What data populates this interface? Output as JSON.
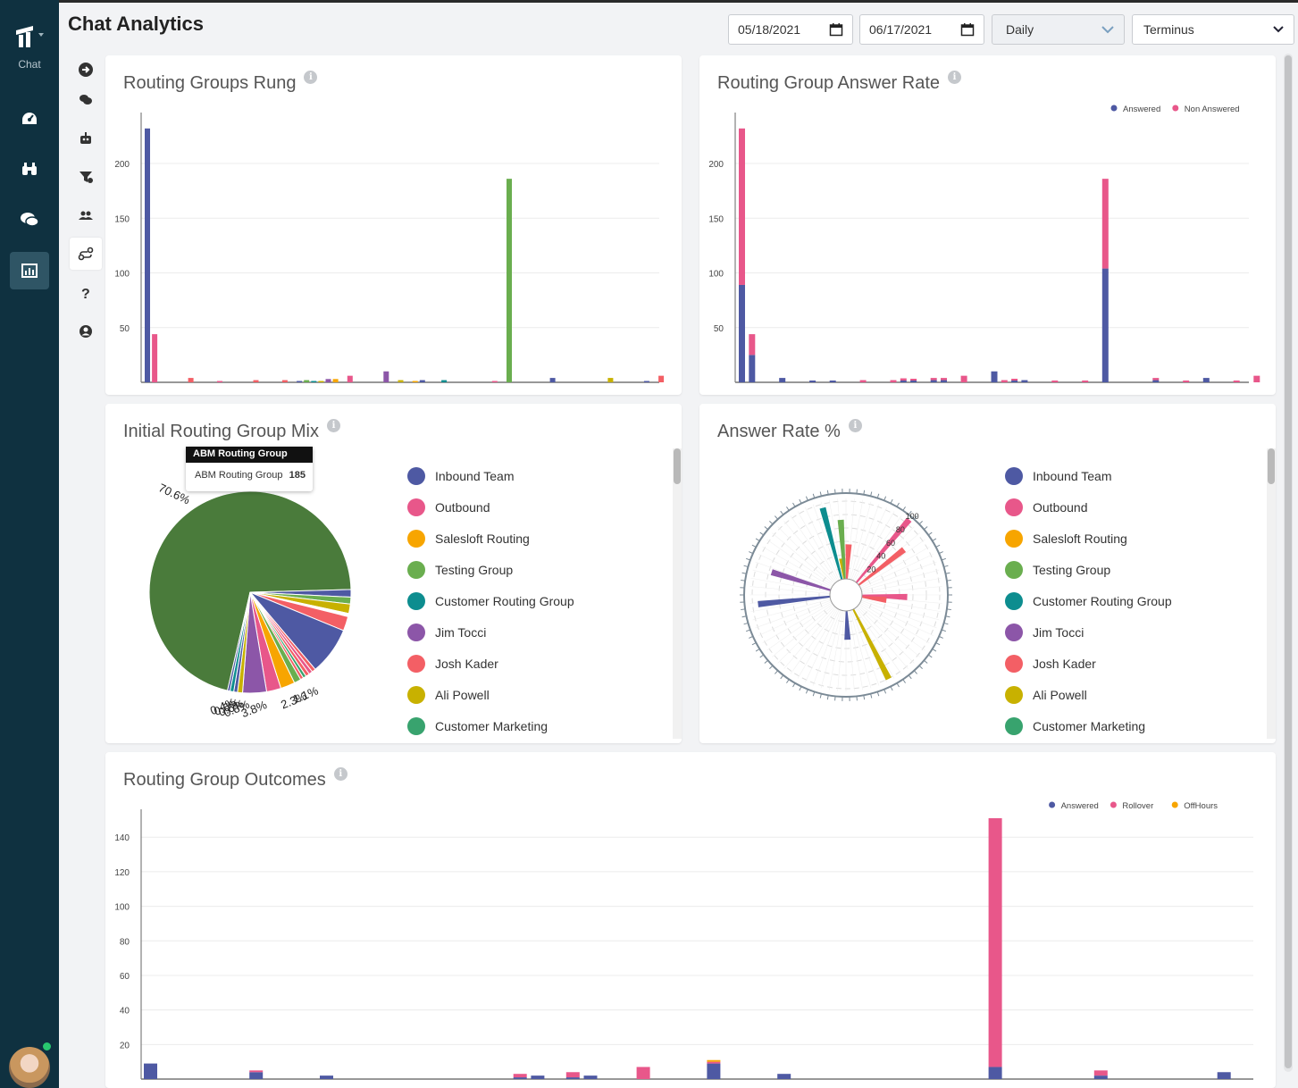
{
  "app": {
    "nav_label": "Chat",
    "page_title": "Chat Analytics"
  },
  "filters": {
    "start_date": "05/18/2021",
    "end_date": "06/17/2021",
    "interval": "Daily",
    "org": "Terminus"
  },
  "icons": {
    "nav": [
      "dashboard-icon",
      "binoculars-icon",
      "chat-bubbles-icon",
      "analytics-icon"
    ],
    "subnav": [
      "arrow-right-circle-icon",
      "chat-icon",
      "bot-icon",
      "filter-icon",
      "users-icon",
      "routing-icon",
      "help-icon",
      "user-circle-icon"
    ]
  },
  "colors": {
    "Inbound Team": "#4e59a3",
    "Outbound": "#e8578a",
    "Salesloft Routing": "#f7a500",
    "Testing Group": "#6aae4f",
    "Customer Routing Group": "#0d8d8f",
    "Jim Tocci": "#8c56a8",
    "Josh Kader": "#f35f65",
    "Ali Powell": "#c8b100",
    "Customer Marketing": "#38a36e",
    "ABM Routing Group": "#4a7b3b"
  },
  "legend_groups": [
    "Inbound Team",
    "Outbound",
    "Salesloft Routing",
    "Testing Group",
    "Customer Routing Group",
    "Jim Tocci",
    "Josh Kader",
    "Ali Powell",
    "Customer Marketing"
  ],
  "cards": {
    "rung": {
      "title": "Routing Groups Rung"
    },
    "answer_rate": {
      "title": "Routing Group Answer Rate"
    },
    "mix": {
      "title": "Initial Routing Group Mix"
    },
    "pct": {
      "title": "Answer Rate %"
    },
    "outcomes": {
      "title": "Routing Group Outcomes"
    }
  },
  "tooltip": {
    "header": "ABM Routing Group",
    "label": "ABM Routing Group",
    "value": "185"
  },
  "chart_data": [
    {
      "id": "rung",
      "type": "bar",
      "ylim": [
        0,
        240
      ],
      "yticks": [
        50,
        100,
        150,
        200
      ],
      "bars": [
        {
          "x": 0,
          "v": 232,
          "c": "#4e59a3"
        },
        {
          "x": 1,
          "v": 44,
          "c": "#e8578a"
        },
        {
          "x": 6,
          "v": 4,
          "c": "#f35f65"
        },
        {
          "x": 10,
          "v": 1,
          "c": "#e8578a"
        },
        {
          "x": 15,
          "v": 2,
          "c": "#f35f65"
        },
        {
          "x": 19,
          "v": 2,
          "c": "#f35f65"
        },
        {
          "x": 21,
          "v": 1,
          "c": "#4e59a3"
        },
        {
          "x": 22,
          "v": 2,
          "c": "#6aae4f"
        },
        {
          "x": 23,
          "v": 1,
          "c": "#0d8d8f"
        },
        {
          "x": 24,
          "v": 1,
          "c": "#c8b100"
        },
        {
          "x": 25,
          "v": 3,
          "c": "#8c56a8"
        },
        {
          "x": 26,
          "v": 3,
          "c": "#f7a500"
        },
        {
          "x": 28,
          "v": 6,
          "c": "#e8578a"
        },
        {
          "x": 33,
          "v": 10,
          "c": "#8c56a8"
        },
        {
          "x": 35,
          "v": 2,
          "c": "#c8b100"
        },
        {
          "x": 37,
          "v": 1,
          "c": "#f7a500"
        },
        {
          "x": 38,
          "v": 2,
          "c": "#4e59a3"
        },
        {
          "x": 41,
          "v": 2,
          "c": "#0d8d8f"
        },
        {
          "x": 48,
          "v": 1,
          "c": "#e8578a"
        },
        {
          "x": 50,
          "v": 186,
          "c": "#6aae4f"
        },
        {
          "x": 56,
          "v": 4,
          "c": "#4e59a3"
        },
        {
          "x": 64,
          "v": 4,
          "c": "#c8b100"
        },
        {
          "x": 69,
          "v": 1,
          "c": "#4e59a3"
        },
        {
          "x": 71,
          "v": 6,
          "c": "#f35f65"
        }
      ]
    },
    {
      "id": "answer_rate",
      "type": "bar",
      "stacked": true,
      "ylim": [
        0,
        240
      ],
      "yticks": [
        50,
        100,
        150,
        200
      ],
      "legend": [
        {
          "name": "Answered",
          "c": "#4e59a3"
        },
        {
          "name": "Non Answered",
          "c": "#e8578a"
        }
      ],
      "bars": [
        {
          "x": 0,
          "a": 89,
          "n": 143
        },
        {
          "x": 1,
          "a": 25,
          "n": 19
        },
        {
          "x": 4,
          "a": 4,
          "n": 0
        },
        {
          "x": 7,
          "a": 1,
          "n": 0
        },
        {
          "x": 9,
          "a": 1,
          "n": 0
        },
        {
          "x": 12,
          "a": 0,
          "n": 2
        },
        {
          "x": 15,
          "a": 0,
          "n": 2
        },
        {
          "x": 16,
          "a": 1,
          "n": 2
        },
        {
          "x": 17,
          "a": 1,
          "n": 1
        },
        {
          "x": 19,
          "a": 2,
          "n": 2
        },
        {
          "x": 20,
          "a": 2,
          "n": 2
        },
        {
          "x": 22,
          "a": 0,
          "n": 6
        },
        {
          "x": 25,
          "a": 10,
          "n": 0
        },
        {
          "x": 26,
          "a": 0,
          "n": 2
        },
        {
          "x": 27,
          "a": 1,
          "n": 1
        },
        {
          "x": 28,
          "a": 2,
          "n": 0
        },
        {
          "x": 31,
          "a": 0,
          "n": 1
        },
        {
          "x": 34,
          "a": 0,
          "n": 1
        },
        {
          "x": 36,
          "a": 104,
          "n": 82
        },
        {
          "x": 41,
          "a": 2,
          "n": 2
        },
        {
          "x": 44,
          "a": 0,
          "n": 1
        },
        {
          "x": 46,
          "a": 4,
          "n": 0
        },
        {
          "x": 49,
          "a": 0,
          "n": 1
        },
        {
          "x": 51,
          "a": 0,
          "n": 6
        }
      ]
    },
    {
      "id": "mix",
      "type": "pie",
      "slices": [
        {
          "v": 70.6,
          "c": "#4a7b3b",
          "label": "70.6%"
        },
        {
          "v": 1.2,
          "c": "#4e59a3",
          "label": ""
        },
        {
          "v": 1.1,
          "c": "#6aae4f",
          "label": ""
        },
        {
          "v": 1.5,
          "c": "#c8b100",
          "label": ""
        },
        {
          "v": 0.5,
          "c": "#ffffff",
          "label": ""
        },
        {
          "v": 2.3,
          "c": "#f35f65",
          "label": ""
        },
        {
          "v": 7.6,
          "c": "#4e59a3",
          "label": ""
        },
        {
          "v": 0.6,
          "c": "#f35f65",
          "label": ""
        },
        {
          "v": 0.6,
          "c": "#e8578a",
          "label": ""
        },
        {
          "v": 0.6,
          "c": "#f35f65",
          "label": ""
        },
        {
          "v": 0.5,
          "c": "#38a36e",
          "label": ""
        },
        {
          "v": 0.5,
          "c": "#f35f65",
          "label": ""
        },
        {
          "v": 1.1,
          "c": "#6aae4f",
          "label": "1.1%"
        },
        {
          "v": 2.3,
          "c": "#f7a500",
          "label": "2.3%"
        },
        {
          "v": 2.3,
          "c": "#e8578a",
          "label": ""
        },
        {
          "v": 3.8,
          "c": "#8c56a8",
          "label": "3.8%"
        },
        {
          "v": 0.8,
          "c": "#c8b100",
          "label": "0.8%"
        },
        {
          "v": 0.6,
          "c": "#4e59a3",
          "label": "0.6%"
        },
        {
          "v": 0.6,
          "c": "#0d8d8f",
          "label": "0.6%"
        },
        {
          "v": 0.4,
          "c": "#4e59a3",
          "label": "0.4%"
        }
      ]
    },
    {
      "id": "pct",
      "type": "polar-bar",
      "rticks": [
        20,
        40,
        60,
        80,
        100
      ],
      "spokes": [
        {
          "angle": -15,
          "v": 90,
          "c": "#0d8d8f"
        },
        {
          "angle": -6,
          "v": 25,
          "c": "#c8b100"
        },
        {
          "angle": -4,
          "v": 72,
          "c": "#6aae4f"
        },
        {
          "angle": 3,
          "v": 42,
          "c": "#f35f65"
        },
        {
          "angle": 40,
          "v": 100,
          "c": "#e8578a"
        },
        {
          "angle": 52,
          "v": 70,
          "c": "#f35f65"
        },
        {
          "angle": 92,
          "v": 55,
          "c": "#e8578a"
        },
        {
          "angle": 97,
          "v": 30,
          "c": "#f35f65"
        },
        {
          "angle": 153,
          "v": 95,
          "c": "#c8b100"
        },
        {
          "angle": 178,
          "v": 35,
          "c": "#4e59a3"
        },
        {
          "angle": 264,
          "v": 88,
          "c": "#4e59a3"
        },
        {
          "angle": 287,
          "v": 75,
          "c": "#8c56a8"
        }
      ]
    },
    {
      "id": "outcomes",
      "type": "bar",
      "stacked": true,
      "ylim": [
        0,
        152
      ],
      "yticks": [
        20,
        40,
        60,
        80,
        100,
        120,
        140
      ],
      "legend": [
        {
          "name": "Answered",
          "c": "#4e59a3"
        },
        {
          "name": "Rollover",
          "c": "#e8578a"
        },
        {
          "name": "OffHours",
          "c": "#f7a500"
        }
      ],
      "bars": [
        {
          "x": 0,
          "a": 9,
          "r": 0,
          "o": 0
        },
        {
          "x": 6,
          "a": 4,
          "r": 1,
          "o": 0
        },
        {
          "x": 10,
          "a": 2,
          "r": 0,
          "o": 0
        },
        {
          "x": 21,
          "a": 1,
          "r": 2,
          "o": 0
        },
        {
          "x": 22,
          "a": 2,
          "r": 0,
          "o": 0
        },
        {
          "x": 24,
          "a": 1,
          "r": 3,
          "o": 0
        },
        {
          "x": 25,
          "a": 2,
          "r": 0,
          "o": 0
        },
        {
          "x": 28,
          "a": 0,
          "r": 7,
          "o": 0
        },
        {
          "x": 32,
          "a": 9,
          "r": 1,
          "o": 1
        },
        {
          "x": 36,
          "a": 3,
          "r": 0,
          "o": 0
        },
        {
          "x": 48,
          "a": 7,
          "r": 144,
          "o": 0
        },
        {
          "x": 54,
          "a": 2,
          "r": 3,
          "o": 0
        },
        {
          "x": 61,
          "a": 4,
          "r": 0,
          "o": 0
        }
      ]
    }
  ]
}
